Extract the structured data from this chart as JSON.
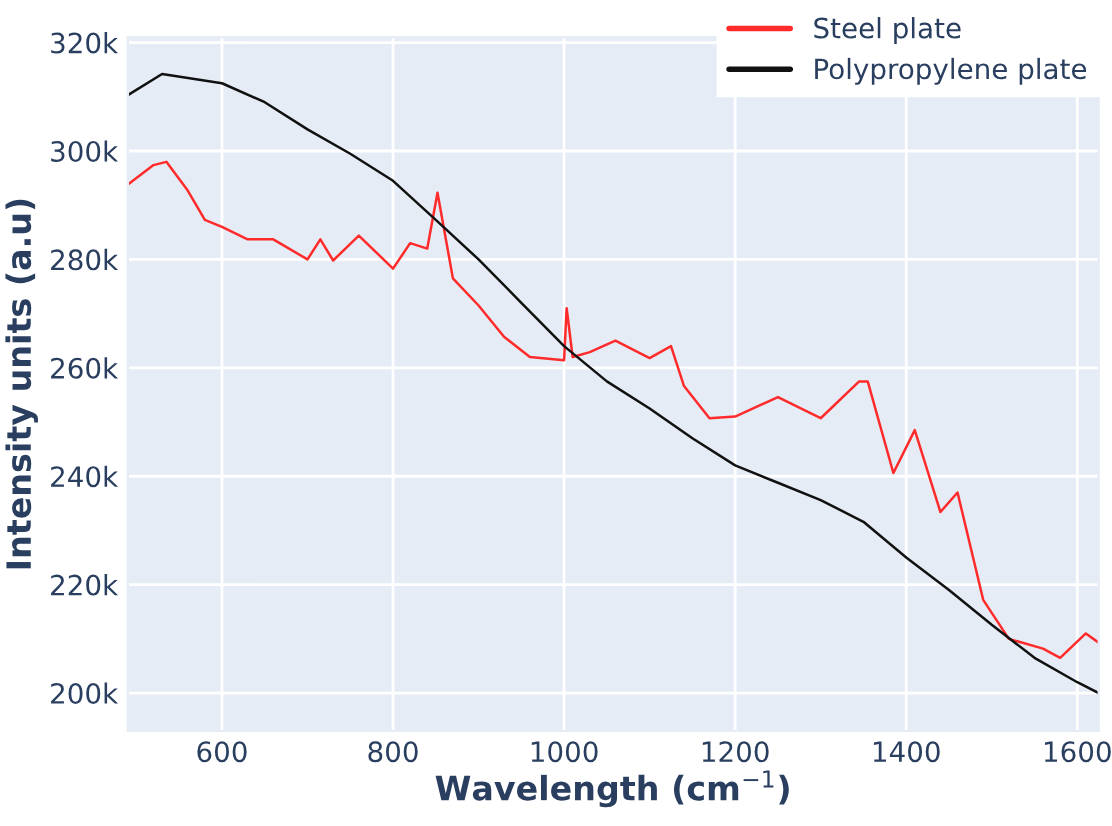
{
  "chart_data": {
    "type": "line",
    "xlabel": "Wavelength (cm$^{−1}$)",
    "ylabel": "Intensity units (a.u)",
    "xlim": [
      490,
      1625
    ],
    "xticks": [
      600,
      800,
      1000,
      1200,
      1400,
      1600
    ],
    "ylim": [
      193000,
      321000
    ],
    "yticks": [
      {
        "value": 200000,
        "label": "200k"
      },
      {
        "value": 220000,
        "label": "220k"
      },
      {
        "value": 240000,
        "label": "240k"
      },
      {
        "value": 260000,
        "label": "260k"
      },
      {
        "value": 280000,
        "label": "280k"
      },
      {
        "value": 300000,
        "label": "300k"
      },
      {
        "value": 320000,
        "label": "320k"
      }
    ],
    "grid": true,
    "legend": "top right",
    "line_style": "solid",
    "marker": "none",
    "series": [
      {
        "name": "Steel plate",
        "color": "#ff2b2b",
        "x": [
          490,
          520,
          535,
          560,
          580,
          600,
          630,
          660,
          700,
          715,
          730,
          760,
          800,
          820,
          840,
          852,
          870,
          900,
          930,
          960,
          1000,
          1003,
          1010,
          1030,
          1060,
          1100,
          1125,
          1140,
          1170,
          1200,
          1250,
          1300,
          1345,
          1355,
          1385,
          1410,
          1440,
          1460,
          1490,
          1520,
          1560,
          1580,
          1610,
          1625
        ],
        "values": [
          293800,
          297400,
          298000,
          292700,
          287300,
          286000,
          283700,
          283700,
          280000,
          283700,
          279800,
          284400,
          278300,
          283000,
          282000,
          292300,
          276500,
          271500,
          265700,
          262000,
          261400,
          271000,
          262000,
          262900,
          265000,
          261800,
          264000,
          256700,
          250700,
          251000,
          254600,
          250700,
          257500,
          257500,
          240600,
          248500,
          233400,
          237000,
          217200,
          210000,
          208200,
          206500,
          211000,
          209300
        ]
      },
      {
        "name": "Polypropylene plate",
        "color": "#111111",
        "x": [
          490,
          530,
          600,
          650,
          700,
          750,
          800,
          850,
          900,
          950,
          1000,
          1050,
          1100,
          1150,
          1200,
          1250,
          1300,
          1350,
          1400,
          1450,
          1500,
          1550,
          1600,
          1625
        ],
        "values": [
          310300,
          314200,
          312500,
          309000,
          304000,
          299500,
          294500,
          287300,
          280000,
          272000,
          264000,
          257500,
          252500,
          247000,
          242000,
          238800,
          235600,
          231600,
          225000,
          219000,
          212600,
          206500,
          202000,
          200000
        ]
      }
    ]
  }
}
